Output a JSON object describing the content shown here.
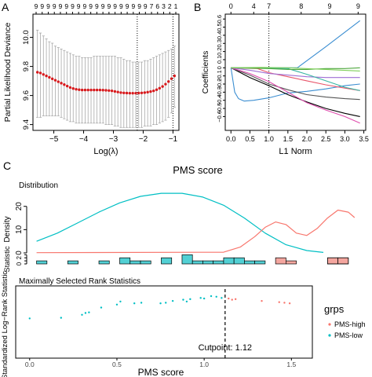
{
  "panel_labels": {
    "a": "A",
    "b": "B",
    "c": "C"
  },
  "colors": {
    "point_red": "#d7191c",
    "err_gray": "#a9a9a9",
    "high": "#f8766d",
    "low": "#00bfc4",
    "high_fill": "#f4a69f",
    "low_fill": "#52d0d4"
  },
  "chart_data": [
    {
      "id": "A",
      "type": "scatter",
      "xlabel": "Log(λ)",
      "ylabel": "Partial Likelihood Deviance",
      "xlim": [
        -5.7,
        -0.8
      ],
      "ylim": [
        9.36,
        10.16
      ],
      "x_ticks": [
        -5,
        -4,
        -3,
        -2,
        -1
      ],
      "y_ticks": [
        9.4,
        9.6,
        9.8,
        10.0
      ],
      "top_ticks": [
        "9",
        "9",
        "9",
        "9",
        "9",
        "9",
        "9",
        "9",
        "9",
        "9",
        "9",
        "9",
        "9",
        "9",
        "9",
        "9",
        "9",
        "9",
        "9",
        "7",
        "6",
        "3",
        "2",
        "1"
      ],
      "vlines": [
        -2.2,
        -1.0
      ],
      "x": [
        -5.55,
        -5.45,
        -5.35,
        -5.25,
        -5.15,
        -5.05,
        -4.95,
        -4.85,
        -4.75,
        -4.65,
        -4.55,
        -4.45,
        -4.35,
        -4.25,
        -4.15,
        -4.05,
        -3.95,
        -3.85,
        -3.75,
        -3.65,
        -3.55,
        -3.45,
        -3.35,
        -3.25,
        -3.15,
        -3.05,
        -2.95,
        -2.85,
        -2.75,
        -2.65,
        -2.55,
        -2.45,
        -2.35,
        -2.25,
        -2.15,
        -2.05,
        -1.95,
        -1.85,
        -1.75,
        -1.65,
        -1.55,
        -1.45,
        -1.35,
        -1.25,
        -1.15,
        -1.05,
        -0.95
      ],
      "y": [
        9.76,
        9.755,
        9.745,
        9.735,
        9.725,
        9.715,
        9.705,
        9.695,
        9.685,
        9.675,
        9.665,
        9.655,
        9.648,
        9.643,
        9.64,
        9.638,
        9.638,
        9.638,
        9.638,
        9.638,
        9.638,
        9.638,
        9.637,
        9.636,
        9.634,
        9.632,
        9.628,
        9.624,
        9.62,
        9.618,
        9.617,
        9.616,
        9.616,
        9.616,
        9.617,
        9.618,
        9.62,
        9.623,
        9.627,
        9.632,
        9.64,
        9.65,
        9.662,
        9.678,
        9.696,
        9.716,
        9.735
      ],
      "err_upper": [
        10.05,
        10.03,
        10.01,
        9.99,
        9.97,
        9.96,
        9.94,
        9.93,
        9.92,
        9.91,
        9.9,
        9.89,
        9.88,
        9.87,
        9.87,
        9.86,
        9.86,
        9.86,
        9.86,
        9.87,
        9.87,
        9.87,
        9.87,
        9.87,
        9.87,
        9.87,
        9.87,
        9.86,
        9.86,
        9.85,
        9.84,
        9.84,
        9.83,
        9.83,
        9.83,
        9.83,
        9.84,
        9.84,
        9.85,
        9.86,
        9.87,
        9.88,
        9.89,
        9.9,
        9.91,
        9.92,
        9.94
      ],
      "err_lower": [
        9.45,
        9.45,
        9.46,
        9.46,
        9.46,
        9.46,
        9.46,
        9.46,
        9.45,
        9.44,
        9.43,
        9.42,
        9.42,
        9.41,
        9.41,
        9.41,
        9.41,
        9.41,
        9.41,
        9.41,
        9.41,
        9.41,
        9.41,
        9.4,
        9.4,
        9.4,
        9.39,
        9.39,
        9.38,
        9.38,
        9.38,
        9.38,
        9.38,
        9.38,
        9.38,
        9.38,
        9.39,
        9.39,
        9.39,
        9.4,
        9.4,
        9.41,
        9.42,
        9.43,
        9.45,
        9.48,
        9.52
      ]
    },
    {
      "id": "B",
      "type": "line",
      "xlabel": "L1 Norm",
      "ylabel": "Coefficients",
      "xlim": [
        -0.15,
        3.55
      ],
      "ylim": [
        -0.77,
        0.66
      ],
      "x_ticks": [
        0.0,
        0.5,
        1.0,
        1.5,
        2.0,
        2.5,
        3.0,
        3.5
      ],
      "x_tick_labels": [
        "0.0",
        "0.5",
        "1.0",
        "1.5",
        "2.0",
        "2.5",
        "3.0",
        "3.5"
      ],
      "y_ticks": [
        -0.6,
        -0.5,
        -0.4,
        -0.3,
        -0.2,
        -0.1,
        0.0,
        0.1,
        0.2,
        0.3,
        0.4,
        0.5,
        0.6
      ],
      "y_tick_labels": [
        "-0.6",
        "-0.5",
        "-0.4",
        "-0.3",
        "-0.2",
        "-0.1",
        "0",
        "0.1",
        "0.2",
        "0.3",
        "0.4",
        "0.5",
        "0.6"
      ],
      "top_ticks": [
        {
          "x": 0,
          "label": "0"
        },
        {
          "x": 0.6,
          "label": "4"
        },
        {
          "x": 1.0,
          "label": "7"
        },
        {
          "x": 1.85,
          "label": "8"
        },
        {
          "x": 2.6,
          "label": "9"
        },
        {
          "x": 3.35,
          "label": "9"
        }
      ],
      "vlines": [
        1.0
      ],
      "series": [
        {
          "color": "#3a8dd1",
          "x": [
            0,
            0.1,
            0.2,
            0.35,
            0.6,
            1.0,
            1.5,
            2.0,
            2.5,
            3.0,
            3.4
          ],
          "y": [
            0,
            -0.3,
            -0.38,
            -0.41,
            -0.4,
            -0.37,
            -0.31,
            -0.29,
            -0.26,
            -0.22,
            -0.2
          ]
        },
        {
          "color": "#3a8dd1",
          "x": [
            0,
            1.75,
            2.5,
            3.4
          ],
          "y": [
            0,
            0.0,
            0.26,
            0.58
          ]
        },
        {
          "color": "#000000",
          "x": [
            0,
            0.5,
            1.0,
            1.5,
            2.0,
            2.5,
            3.0,
            3.4
          ],
          "y": [
            0,
            -0.12,
            -0.22,
            -0.33,
            -0.42,
            -0.5,
            -0.56,
            -0.6
          ]
        },
        {
          "color": "#555555",
          "x": [
            0,
            0.5,
            1.0,
            1.5,
            2.0,
            2.5,
            3.0,
            3.4
          ],
          "y": [
            0,
            -0.09,
            -0.2,
            -0.27,
            -0.33,
            -0.36,
            -0.38,
            -0.39
          ]
        },
        {
          "color": "#df4dad",
          "x": [
            0,
            0.5,
            1.0,
            1.5,
            2.0,
            2.5,
            3.0,
            3.4
          ],
          "y": [
            0,
            -0.07,
            -0.17,
            -0.3,
            -0.43,
            -0.52,
            -0.6,
            -0.68
          ]
        },
        {
          "color": "#e8556a",
          "x": [
            0,
            0.7,
            1.0,
            1.5,
            2.0,
            2.5,
            3.0,
            3.4
          ],
          "y": [
            0,
            -0.01,
            -0.06,
            -0.11,
            -0.16,
            -0.21,
            -0.25,
            -0.28
          ]
        },
        {
          "color": "#9f6fd4",
          "x": [
            0,
            0.5,
            1.0,
            1.5,
            2.0,
            2.5,
            3.0,
            3.4
          ],
          "y": [
            0,
            -0.03,
            -0.07,
            -0.09,
            -0.11,
            -0.12,
            -0.12,
            -0.12
          ]
        },
        {
          "color": "#37b5a3",
          "x": [
            0,
            1.5,
            2.0,
            2.5,
            3.0,
            3.4
          ],
          "y": [
            0,
            -0.01,
            -0.08,
            -0.16,
            -0.24,
            -0.28
          ]
        },
        {
          "color": "#4fa83f",
          "x": [
            0,
            1.0,
            1.5,
            2.0,
            2.5,
            3.0,
            3.4
          ],
          "y": [
            0,
            -0.01,
            -0.02,
            -0.02,
            -0.01,
            -0.01,
            0.0
          ]
        },
        {
          "color": "#7fcf5a",
          "x": [
            0,
            0.8,
            1.5,
            2.5,
            3.4
          ],
          "y": [
            0,
            0.005,
            0.0,
            -0.02,
            -0.04
          ]
        }
      ]
    },
    {
      "id": "C",
      "type": "area",
      "title": "PMS score",
      "subtitle": "Distribution",
      "ylabel": "Density",
      "xlim": [
        -0.04,
        1.58
      ],
      "ylim": [
        0,
        27
      ],
      "y_ticks": [
        0,
        10,
        20
      ],
      "series": [
        {
          "name": "PMS-low",
          "color": "#00bfc4",
          "x": [
            0.0,
            0.1,
            0.2,
            0.3,
            0.4,
            0.5,
            0.6,
            0.7,
            0.8,
            0.9,
            1.0,
            1.1,
            1.2,
            1.3,
            1.38
          ],
          "y": [
            5,
            8.5,
            13,
            17.5,
            21.5,
            24.3,
            25.6,
            25.6,
            24,
            20.5,
            15,
            8.5,
            3.5,
            1,
            0.2
          ]
        },
        {
          "name": "PMS-high",
          "color": "#f8766d",
          "x": [
            0.0,
            0.9,
            0.98,
            1.05,
            1.1,
            1.15,
            1.2,
            1.25,
            1.3,
            1.35,
            1.4,
            1.45,
            1.5,
            1.53
          ],
          "y": [
            0.1,
            0.3,
            2.5,
            7,
            11,
            13.3,
            12.2,
            8.5,
            7.5,
            10.5,
            15,
            18.4,
            17.5,
            15.2
          ]
        }
      ]
    },
    {
      "id": "C-hist",
      "type": "bar",
      "ylabel": "Statistic",
      "xlim": [
        -0.04,
        1.58
      ],
      "ylim": [
        0,
        3.6
      ],
      "y_ticks": [
        0,
        1,
        2,
        3
      ],
      "bars": [
        {
          "x0": 0.0,
          "x1": 0.05,
          "count": 1,
          "group": "PMS-low"
        },
        {
          "x0": 0.15,
          "x1": 0.2,
          "count": 1,
          "group": "PMS-low"
        },
        {
          "x0": 0.3,
          "x1": 0.35,
          "count": 1,
          "group": "PMS-low"
        },
        {
          "x0": 0.4,
          "x1": 0.45,
          "count": 2,
          "group": "PMS-low"
        },
        {
          "x0": 0.45,
          "x1": 0.5,
          "count": 1,
          "group": "PMS-low"
        },
        {
          "x0": 0.5,
          "x1": 0.55,
          "count": 1,
          "group": "PMS-low"
        },
        {
          "x0": 0.6,
          "x1": 0.65,
          "count": 2,
          "group": "PMS-low"
        },
        {
          "x0": 0.7,
          "x1": 0.75,
          "count": 3,
          "group": "PMS-low"
        },
        {
          "x0": 0.75,
          "x1": 0.8,
          "count": 1,
          "group": "PMS-low"
        },
        {
          "x0": 0.8,
          "x1": 0.85,
          "count": 1,
          "group": "PMS-low"
        },
        {
          "x0": 0.85,
          "x1": 0.9,
          "count": 1,
          "group": "PMS-low"
        },
        {
          "x0": 0.9,
          "x1": 0.95,
          "count": 2,
          "group": "PMS-low"
        },
        {
          "x0": 0.95,
          "x1": 1.0,
          "count": 2,
          "group": "PMS-low"
        },
        {
          "x0": 1.0,
          "x1": 1.05,
          "count": 1,
          "group": "PMS-low"
        },
        {
          "x0": 1.05,
          "x1": 1.1,
          "count": 1,
          "group": "PMS-low"
        },
        {
          "x0": 1.15,
          "x1": 1.2,
          "count": 2,
          "group": "PMS-high"
        },
        {
          "x0": 1.2,
          "x1": 1.25,
          "count": 1,
          "group": "PMS-high"
        },
        {
          "x0": 1.4,
          "x1": 1.45,
          "count": 2,
          "group": "PMS-high"
        },
        {
          "x0": 1.45,
          "x1": 1.5,
          "count": 2,
          "group": "PMS-high"
        },
        {
          "x0": 1.4,
          "x1": 1.5,
          "count": 2,
          "group": "PMS-low",
          "outline_only": true
        }
      ]
    },
    {
      "id": "C-rank",
      "type": "scatter",
      "title": "Maximally Selected Rank Statistics",
      "xlabel": "PMS score",
      "ylabel": "Standardized Log−Rank Statistic",
      "xlim": [
        -0.08,
        1.62
      ],
      "ylim": [
        0,
        6
      ],
      "x_ticks": [
        0.0,
        0.5,
        1.0,
        1.5
      ],
      "x_tick_labels": [
        "0.0",
        "0.5",
        "1.0",
        "1.5"
      ],
      "cutpoint": 1.12,
      "cutpoint_label": "Cutpoint: 1.12",
      "legend": {
        "title": "grps",
        "entries": [
          "PMS-high",
          "PMS-low"
        ],
        "position": "right"
      },
      "points": [
        {
          "x": 0.0,
          "y": 3.3,
          "group": "PMS-low"
        },
        {
          "x": 0.18,
          "y": 3.35,
          "group": "PMS-low"
        },
        {
          "x": 0.3,
          "y": 3.6,
          "group": "PMS-low"
        },
        {
          "x": 0.32,
          "y": 3.75,
          "group": "PMS-low"
        },
        {
          "x": 0.34,
          "y": 3.8,
          "group": "PMS-low"
        },
        {
          "x": 0.41,
          "y": 4.2,
          "group": "PMS-low"
        },
        {
          "x": 0.5,
          "y": 4.45,
          "group": "PMS-low"
        },
        {
          "x": 0.52,
          "y": 4.7,
          "group": "PMS-low"
        },
        {
          "x": 0.6,
          "y": 4.55,
          "group": "PMS-low"
        },
        {
          "x": 0.64,
          "y": 4.6,
          "group": "PMS-low"
        },
        {
          "x": 0.75,
          "y": 4.55,
          "group": "PMS-low"
        },
        {
          "x": 0.78,
          "y": 4.6,
          "group": "PMS-low"
        },
        {
          "x": 0.82,
          "y": 4.75,
          "group": "PMS-low"
        },
        {
          "x": 0.88,
          "y": 4.85,
          "group": "PMS-low"
        },
        {
          "x": 0.9,
          "y": 4.7,
          "group": "PMS-low"
        },
        {
          "x": 0.92,
          "y": 4.9,
          "group": "PMS-low"
        },
        {
          "x": 0.98,
          "y": 5.0,
          "group": "PMS-low"
        },
        {
          "x": 1.0,
          "y": 4.95,
          "group": "PMS-low"
        },
        {
          "x": 1.04,
          "y": 5.15,
          "group": "PMS-low"
        },
        {
          "x": 1.07,
          "y": 5.1,
          "group": "PMS-low"
        },
        {
          "x": 1.1,
          "y": 5.0,
          "group": "PMS-low"
        },
        {
          "x": 1.14,
          "y": 4.95,
          "group": "PMS-high"
        },
        {
          "x": 1.16,
          "y": 4.85,
          "group": "PMS-high"
        },
        {
          "x": 1.18,
          "y": 4.9,
          "group": "PMS-high"
        },
        {
          "x": 1.33,
          "y": 4.75,
          "group": "PMS-high"
        },
        {
          "x": 1.43,
          "y": 4.65,
          "group": "PMS-high"
        },
        {
          "x": 1.46,
          "y": 4.6,
          "group": "PMS-high"
        },
        {
          "x": 1.49,
          "y": 4.55,
          "group": "PMS-high"
        }
      ]
    }
  ]
}
